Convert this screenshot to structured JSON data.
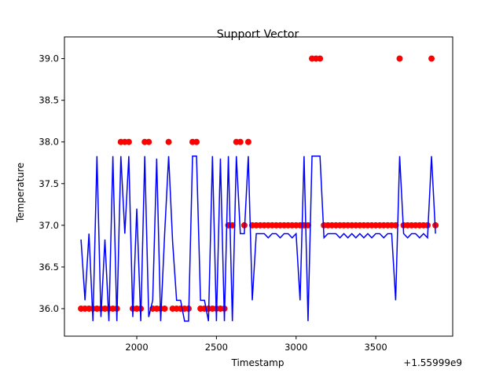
{
  "chart_data": {
    "type": "line",
    "title": "Support Vector",
    "x_label": "Timestamp",
    "y_label": "Temperature",
    "x_offset_label": "+1.55999e9",
    "x": [
      1650,
      1675,
      1700,
      1725,
      1750,
      1775,
      1800,
      1825,
      1850,
      1875,
      1900,
      1925,
      1950,
      1975,
      2000,
      2025,
      2050,
      2075,
      2100,
      2125,
      2150,
      2175,
      2200,
      2225,
      2250,
      2275,
      2300,
      2325,
      2350,
      2375,
      2400,
      2425,
      2450,
      2475,
      2500,
      2525,
      2550,
      2575,
      2600,
      2625,
      2650,
      2675,
      2700,
      2725,
      2750,
      2775,
      2800,
      2825,
      2850,
      2875,
      2900,
      2925,
      2950,
      2975,
      3000,
      3025,
      3050,
      3075,
      3100,
      3125,
      3150,
      3175,
      3200,
      3225,
      3250,
      3275,
      3300,
      3325,
      3350,
      3375,
      3400,
      3425,
      3450,
      3475,
      3500,
      3525,
      3550,
      3575,
      3600,
      3625,
      3650,
      3675,
      3700,
      3725,
      3750,
      3775,
      3800,
      3825,
      3850,
      3875
    ],
    "series": [
      {
        "style": "markers",
        "color": "#ff0000",
        "values": [
          36,
          36,
          36,
          36,
          36,
          36,
          36,
          36,
          36,
          36,
          38,
          38,
          38,
          36,
          36,
          36,
          38,
          38,
          36,
          36,
          36,
          36,
          38,
          36,
          36,
          36,
          36,
          36,
          38,
          38,
          36,
          36,
          36,
          36,
          36,
          36,
          36,
          37,
          37,
          38,
          38,
          37,
          38,
          37,
          37,
          37,
          37,
          37,
          37,
          37,
          37,
          37,
          37,
          37,
          37,
          37,
          37,
          37,
          39,
          39,
          39,
          37,
          37,
          37,
          37,
          37,
          37,
          37,
          37,
          37,
          37,
          37,
          37,
          37,
          37,
          37,
          37,
          37,
          37,
          37,
          39,
          37,
          37,
          37,
          37,
          37,
          37,
          37,
          39,
          37
        ]
      },
      {
        "style": "line",
        "color": "#0000ff",
        "values": [
          36.83,
          36.1,
          36.9,
          35.85,
          37.83,
          35.9,
          36.83,
          35.85,
          37.83,
          35.85,
          37.83,
          36.9,
          37.83,
          35.9,
          37.2,
          35.85,
          37.83,
          35.9,
          36.1,
          37.8,
          35.85,
          36.9,
          37.83,
          36.8,
          36.1,
          36.1,
          35.85,
          35.85,
          37.83,
          37.83,
          36.1,
          36.1,
          35.85,
          37.83,
          35.85,
          37.8,
          35.85,
          37.83,
          35.85,
          37.83,
          36.9,
          36.9,
          37.83,
          36.1,
          36.9,
          36.9,
          36.9,
          36.85,
          36.9,
          36.9,
          36.85,
          36.9,
          36.9,
          36.85,
          36.9,
          36.1,
          37.83,
          35.85,
          37.83,
          37.83,
          37.83,
          36.85,
          36.9,
          36.9,
          36.9,
          36.85,
          36.9,
          36.85,
          36.9,
          36.85,
          36.9,
          36.85,
          36.9,
          36.85,
          36.9,
          36.9,
          36.85,
          36.9,
          36.9,
          36.1,
          37.83,
          36.9,
          36.85,
          36.9,
          36.9,
          36.85,
          36.9,
          36.85,
          37.83,
          36.9
        ]
      }
    ],
    "xlim": [
      1546,
      3983
    ],
    "ylim": [
      35.67,
      39.26
    ],
    "xticks": [
      2000,
      2500,
      3000,
      3500
    ],
    "yticks": [
      {
        "value": 36,
        "label": "36.0"
      },
      {
        "value": 36.5,
        "label": "36.5"
      },
      {
        "value": 37,
        "label": "37.0"
      },
      {
        "value": 37.5,
        "label": "37.5"
      },
      {
        "value": 38,
        "label": "38.0"
      },
      {
        "value": 38.5,
        "label": "38.5"
      },
      {
        "value": 39,
        "label": "39.0"
      }
    ]
  }
}
